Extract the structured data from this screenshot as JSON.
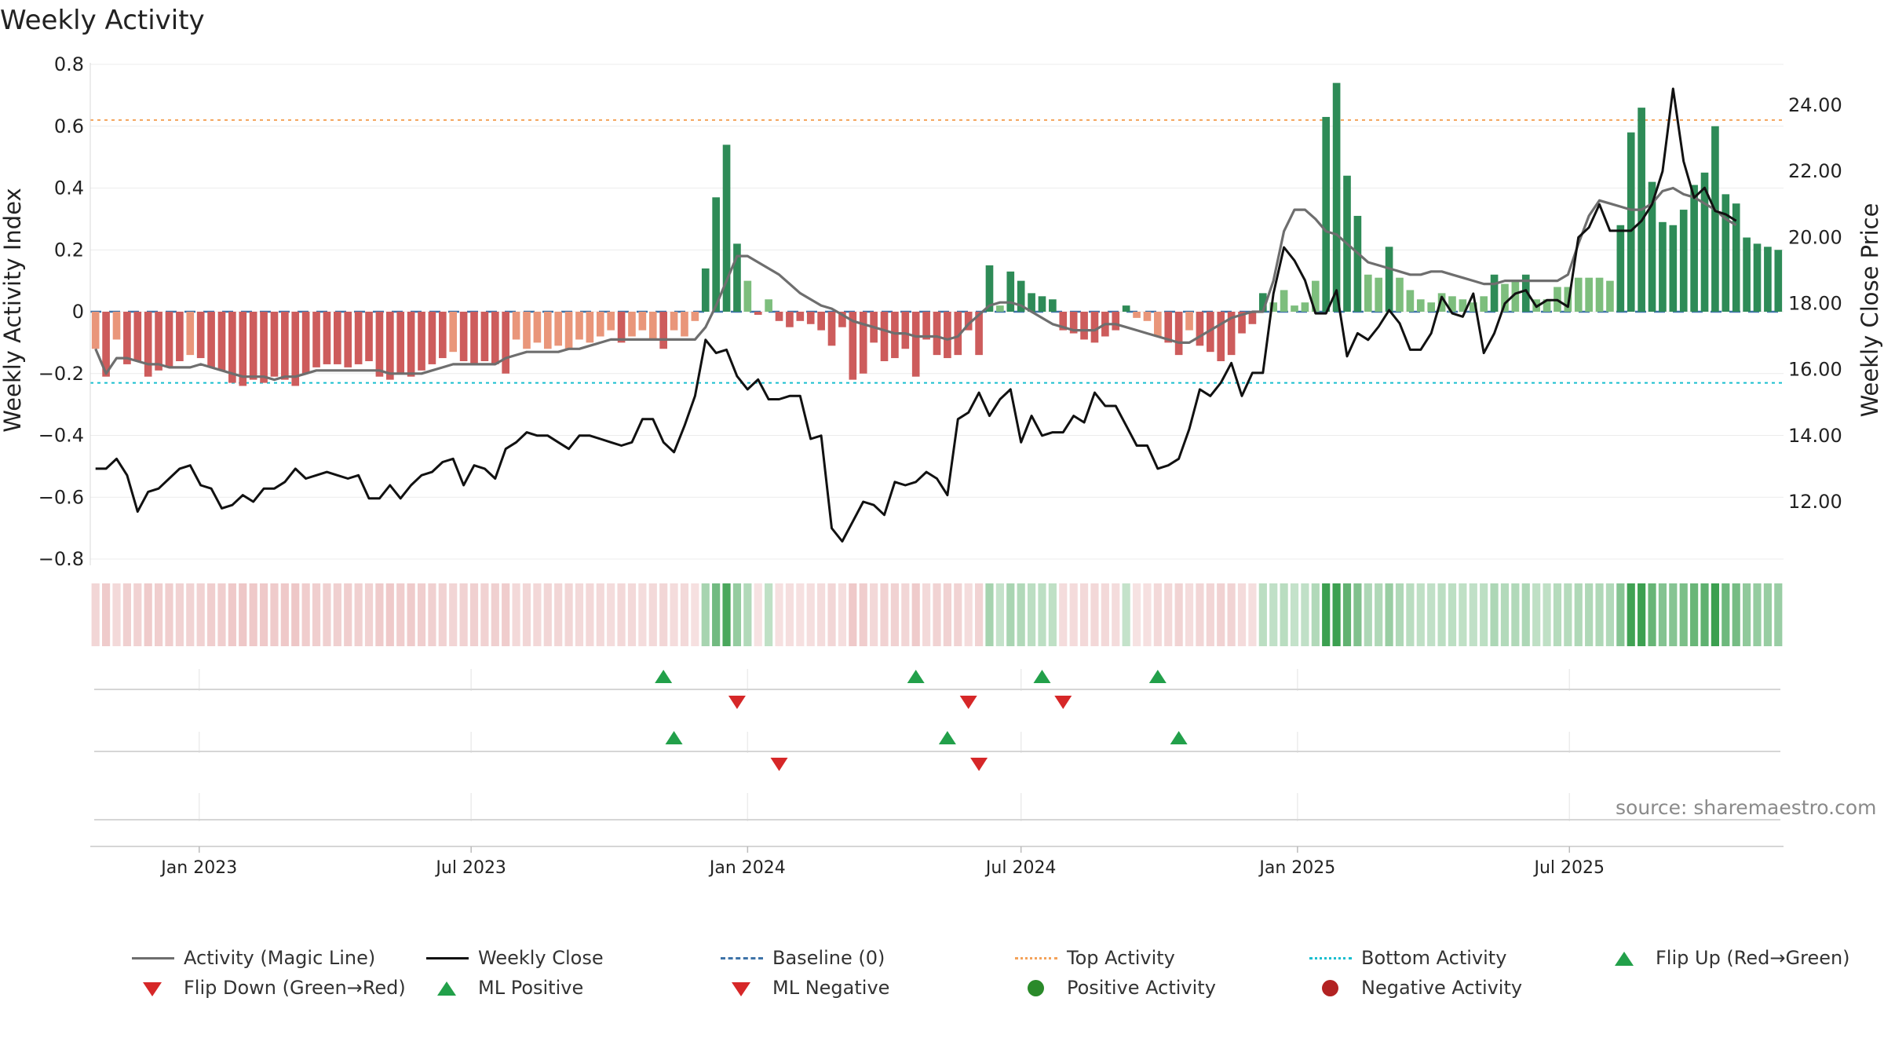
{
  "title": "Weekly Activity",
  "source": "source: sharemaestro.com",
  "chart_data": {
    "type": "bar",
    "title": "Weekly Activity",
    "ylabel": "Weekly Activity Index",
    "y2label": "Weekly Close Price",
    "ylim": [
      -0.8,
      0.8
    ],
    "y2lim": [
      10.0,
      25.5
    ],
    "yticks": [
      "0.8",
      "0.6",
      "0.4",
      "0.2",
      "0",
      "−0.2",
      "−0.4",
      "−0.6",
      "−0.8"
    ],
    "y2ticks": [
      "24.00",
      "22.00",
      "20.00",
      "18.00",
      "16.00",
      "14.00",
      "12.00"
    ],
    "xticks": [
      "Jan 2023",
      "Jul 2023",
      "Jan 2024",
      "Jul 2024",
      "Jan 2025",
      "Jul 2025"
    ],
    "top_activity": 0.62,
    "bottom_activity": -0.23,
    "baseline": 0,
    "weekly_close": [
      13.0,
      13.0,
      13.3,
      12.8,
      11.7,
      12.3,
      12.4,
      12.7,
      13.0,
      13.1,
      12.5,
      12.4,
      11.8,
      11.9,
      12.2,
      12.0,
      12.4,
      12.4,
      12.6,
      13.0,
      12.7,
      12.8,
      12.9,
      12.8,
      12.7,
      12.8,
      12.1,
      12.1,
      12.5,
      12.1,
      12.5,
      12.8,
      12.9,
      13.2,
      13.3,
      12.5,
      13.1,
      13.0,
      12.7,
      13.6,
      13.8,
      14.1,
      14.0,
      14.0,
      13.8,
      13.6,
      14.0,
      14.0,
      13.9,
      13.8,
      13.7,
      13.8,
      14.5,
      14.5,
      13.8,
      13.5,
      14.3,
      15.2,
      16.9,
      16.5,
      16.6,
      15.8,
      15.4,
      15.7,
      15.1,
      15.1,
      15.2,
      15.2,
      13.9,
      14.0,
      11.2,
      10.8,
      11.4,
      12.0,
      11.9,
      11.6,
      12.6,
      12.5,
      12.6,
      12.9,
      12.7,
      12.2,
      14.5,
      14.7,
      15.3,
      14.6,
      15.1,
      15.4,
      13.8,
      14.6,
      14.0,
      14.1,
      14.1,
      14.6,
      14.4,
      15.3,
      14.9,
      14.9,
      14.3,
      13.7,
      13.7,
      13.0,
      13.1,
      13.3,
      14.2,
      15.4,
      15.2,
      15.6,
      16.2,
      15.2,
      15.9,
      15.9,
      18.3,
      19.7,
      19.3,
      18.7,
      17.7,
      17.7,
      18.4,
      16.4,
      17.1,
      16.9,
      17.3,
      17.8,
      17.4,
      16.6,
      16.6,
      17.1,
      18.2,
      17.7,
      17.6,
      18.3,
      16.5,
      17.1,
      18.0,
      18.3,
      18.4,
      17.9,
      18.1,
      18.1,
      17.9,
      20.0,
      20.3,
      21.0,
      20.2,
      20.2,
      20.2,
      20.5,
      21.0,
      22.0,
      24.5,
      22.3,
      21.2,
      21.5,
      20.8,
      20.7,
      20.5
    ],
    "magic_line": [
      -0.12,
      -0.2,
      -0.15,
      -0.15,
      -0.16,
      -0.17,
      -0.17,
      -0.18,
      -0.18,
      -0.18,
      -0.17,
      -0.18,
      -0.19,
      -0.2,
      -0.21,
      -0.21,
      -0.21,
      -0.22,
      -0.21,
      -0.21,
      -0.2,
      -0.19,
      -0.19,
      -0.19,
      -0.19,
      -0.19,
      -0.19,
      -0.19,
      -0.2,
      -0.2,
      -0.2,
      -0.2,
      -0.19,
      -0.18,
      -0.17,
      -0.17,
      -0.17,
      -0.17,
      -0.17,
      -0.15,
      -0.14,
      -0.13,
      -0.13,
      -0.13,
      -0.13,
      -0.12,
      -0.12,
      -0.11,
      -0.1,
      -0.09,
      -0.09,
      -0.09,
      -0.09,
      -0.09,
      -0.09,
      -0.09,
      -0.09,
      -0.09,
      -0.05,
      0.02,
      0.1,
      0.18,
      0.18,
      0.16,
      0.14,
      0.12,
      0.09,
      0.06,
      0.04,
      0.02,
      0.01,
      -0.01,
      -0.03,
      -0.04,
      -0.05,
      -0.06,
      -0.07,
      -0.07,
      -0.08,
      -0.08,
      -0.08,
      -0.09,
      -0.08,
      -0.04,
      -0.01,
      0.02,
      0.03,
      0.03,
      0.02,
      0.0,
      -0.02,
      -0.04,
      -0.05,
      -0.06,
      -0.06,
      -0.06,
      -0.04,
      -0.04,
      -0.05,
      -0.06,
      -0.07,
      -0.08,
      -0.09,
      -0.1,
      -0.1,
      -0.08,
      -0.06,
      -0.04,
      -0.02,
      -0.01,
      0.0,
      0.0,
      0.1,
      0.26,
      0.33,
      0.33,
      0.3,
      0.26,
      0.25,
      0.22,
      0.19,
      0.16,
      0.15,
      0.14,
      0.13,
      0.12,
      0.12,
      0.13,
      0.13,
      0.12,
      0.11,
      0.1,
      0.09,
      0.09,
      0.1,
      0.1,
      0.1,
      0.1,
      0.1,
      0.1,
      0.12,
      0.22,
      0.31,
      0.36,
      0.35,
      0.34,
      0.33,
      0.33,
      0.35,
      0.39,
      0.4,
      0.38,
      0.37,
      0.35,
      0.33,
      0.3,
      0.28
    ],
    "series": [
      {
        "name": "Weekly Activity Index",
        "values": [
          -0.12,
          -0.21,
          -0.09,
          -0.17,
          -0.16,
          -0.21,
          -0.19,
          -0.18,
          -0.16,
          -0.14,
          -0.15,
          -0.18,
          -0.19,
          -0.23,
          -0.24,
          -0.22,
          -0.23,
          -0.21,
          -0.22,
          -0.24,
          -0.2,
          -0.18,
          -0.17,
          -0.17,
          -0.18,
          -0.17,
          -0.16,
          -0.21,
          -0.22,
          -0.2,
          -0.21,
          -0.19,
          -0.17,
          -0.15,
          -0.13,
          -0.16,
          -0.17,
          -0.16,
          -0.17,
          -0.2,
          -0.09,
          -0.12,
          -0.1,
          -0.12,
          -0.11,
          -0.12,
          -0.09,
          -0.1,
          -0.08,
          -0.06,
          -0.1,
          -0.08,
          -0.06,
          -0.09,
          -0.12,
          -0.06,
          -0.08,
          -0.03,
          0.14,
          0.37,
          0.54,
          0.22,
          0.1,
          -0.01,
          0.04,
          -0.03,
          -0.05,
          -0.03,
          -0.04,
          -0.06,
          -0.11,
          -0.05,
          -0.22,
          -0.2,
          -0.1,
          -0.16,
          -0.15,
          -0.12,
          -0.21,
          -0.09,
          -0.14,
          -0.15,
          -0.14,
          -0.06,
          -0.14,
          0.15,
          0.02,
          0.13,
          0.1,
          0.06,
          0.05,
          0.04,
          -0.06,
          -0.07,
          -0.09,
          -0.1,
          -0.08,
          -0.06,
          0.02,
          -0.02,
          -0.03,
          -0.08,
          -0.1,
          -0.14,
          -0.06,
          -0.11,
          -0.13,
          -0.16,
          -0.14,
          -0.07,
          -0.04,
          0.06,
          0.03,
          0.07,
          0.02,
          0.03,
          0.1,
          0.63,
          0.74,
          0.44,
          0.31,
          0.12,
          0.11,
          0.21,
          0.11,
          0.07,
          0.04,
          0.03,
          0.06,
          0.05,
          0.04,
          0.03,
          0.05,
          0.12,
          0.09,
          0.1,
          0.12,
          0.04,
          0.04,
          0.08,
          0.08,
          0.11,
          0.11,
          0.11,
          0.1,
          0.28,
          0.58,
          0.66,
          0.42,
          0.29,
          0.28,
          0.33,
          0.41,
          0.45,
          0.6,
          0.38,
          0.35,
          0.24,
          0.22,
          0.21,
          0.2
        ]
      }
    ],
    "flip_up": [
      "2023-11-06",
      "2024-04-22",
      "2024-07-15",
      "2024-09-30"
    ],
    "flip_down": [
      "2023-12-25",
      "2024-05-27",
      "2024-07-29"
    ],
    "ml_positive": [
      "2023-11-13",
      "2024-05-13",
      "2024-10-14"
    ],
    "ml_negative": [
      "2024-01-22",
      "2024-06-03"
    ],
    "first_week": "2022-10-24",
    "grid": true
  },
  "legend": {
    "magic_line": "Activity (Magic Line)",
    "weekly_close": "Weekly Close",
    "baseline": "Baseline (0)",
    "top_activity": "Top Activity",
    "bottom_activity": "Bottom Activity",
    "flip_up": "Flip Up (Red→Green)",
    "flip_down": "Flip Down (Green→Red)",
    "ml_positive": "ML Positive",
    "ml_negative": "ML Negative",
    "positive_activity": "Positive Activity",
    "negative_activity": "Negative Activity"
  },
  "colors": {
    "pos_strong": "#2e8b57",
    "pos_light": "#7dbe7d",
    "neg_strong": "#cd5c5c",
    "neg_light": "#e9967a",
    "magic_line": "#6e6e6e",
    "close": "#111111",
    "baseline": "#3e73a8",
    "top": "#f4a259",
    "bottom": "#17becf",
    "marker_up": "#22a04a",
    "marker_down": "#d62728",
    "pos_dot": "#2a8a2a",
    "neg_dot": "#b22222"
  }
}
